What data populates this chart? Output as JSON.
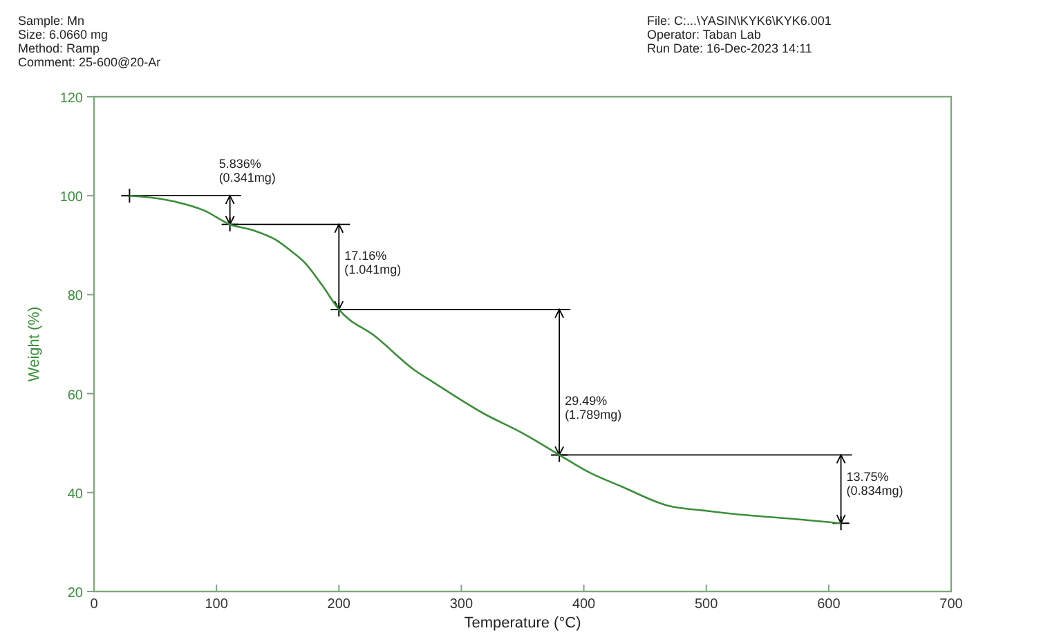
{
  "chart_data": {
    "type": "line",
    "xlabel": "Temperature (°C)",
    "ylabel": "Weight (%)",
    "xlim": [
      0,
      700
    ],
    "xticks": [
      0,
      100,
      200,
      300,
      400,
      500,
      600,
      700
    ],
    "ylim": [
      20,
      120
    ],
    "yticks": [
      20,
      40,
      60,
      80,
      100,
      120
    ],
    "marker": "none",
    "line_style": "solid",
    "series": [
      {
        "color": "#3a8f3a",
        "x": [
          29,
          47,
          66,
          90,
          111,
          130,
          149,
          160,
          172,
          186,
          200,
          230,
          262,
          277,
          318,
          350,
          380,
          405,
          431,
          468,
          500,
          525,
          570,
          610
        ],
        "values": [
          100,
          99.6,
          98.8,
          97,
          94.2,
          93,
          91,
          89,
          86.5,
          82,
          77,
          71.5,
          64.7,
          62.3,
          56,
          52,
          47.6,
          44,
          41.2,
          37.4,
          36.3,
          35.6,
          34.7,
          33.8
        ]
      }
    ],
    "annotations": [
      "Sample: Mn",
      "Size:  6.0660 mg",
      "Method: Ramp",
      "Comment: 25-600@20-Ar",
      "File: C:...\\YASIN\\KYK6\\KYK6.001",
      "Operator: Taban Lab",
      "Run Date: 16-Dec-2023 14:11",
      {
        "text": "5.836% (0.341mg)",
        "x": 111,
        "y": 94.2
      },
      {
        "text": "17.16% (1.041mg)",
        "x": 200,
        "y": 77
      },
      {
        "text": "29.49% (1.789mg)",
        "x": 380,
        "y": 47.6
      },
      {
        "text": "13.75% (0.834mg)",
        "x": 610,
        "y": 33.8
      }
    ]
  }
}
